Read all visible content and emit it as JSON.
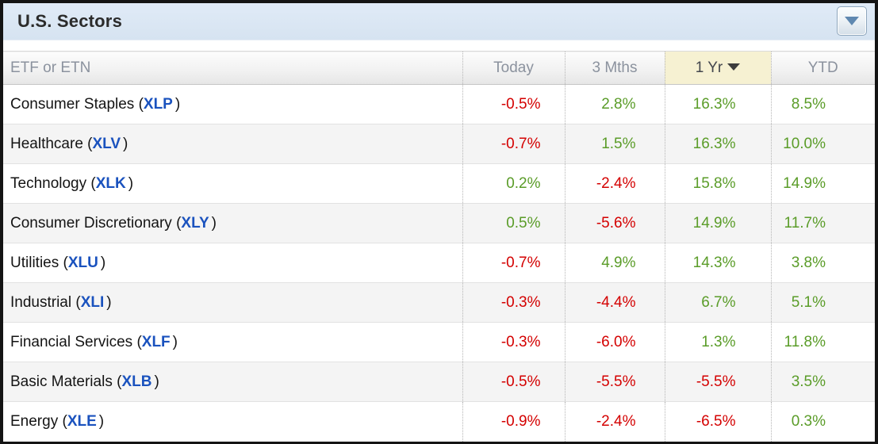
{
  "window": {
    "title": "U.S. Sectors",
    "dropdown_icon": "chevron-down"
  },
  "colors": {
    "titlebar_top": "#e0ebf7",
    "titlebar_bottom": "#d6e3f1",
    "title_text": "#2b2b2b",
    "header_text": "#8b929e",
    "sorted_bg": "#f6f1d2",
    "stripe_bg": "#f4f4f4",
    "pos_green": "#5a9c28",
    "neg_red": "#d40000",
    "ticker_blue": "#1a52be",
    "button_arrow": "#5f88b0"
  },
  "table": {
    "columns": [
      {
        "key": "name",
        "label": "ETF or ETN",
        "sorted": false
      },
      {
        "key": "today",
        "label": "Today",
        "sorted": false
      },
      {
        "key": "m3",
        "label": "3 Mths",
        "sorted": false
      },
      {
        "key": "y1",
        "label": "1 Yr",
        "sorted": true,
        "sort_direction": "desc"
      },
      {
        "key": "ytd",
        "label": "YTD",
        "sorted": false
      }
    ],
    "rows": [
      {
        "sector": "Consumer Staples",
        "ticker": "XLP",
        "today": "-0.5%",
        "m3": "2.8%",
        "y1": "16.3%",
        "ytd": "8.5%"
      },
      {
        "sector": "Healthcare",
        "ticker": "XLV",
        "today": "-0.7%",
        "m3": "1.5%",
        "y1": "16.3%",
        "ytd": "10.0%"
      },
      {
        "sector": "Technology",
        "ticker": "XLK",
        "today": "0.2%",
        "m3": "-2.4%",
        "y1": "15.8%",
        "ytd": "14.9%"
      },
      {
        "sector": "Consumer Discretionary",
        "ticker": "XLY",
        "today": "0.5%",
        "m3": "-5.6%",
        "y1": "14.9%",
        "ytd": "11.7%"
      },
      {
        "sector": "Utilities",
        "ticker": "XLU",
        "today": "-0.7%",
        "m3": "4.9%",
        "y1": "14.3%",
        "ytd": "3.8%"
      },
      {
        "sector": "Industrial",
        "ticker": "XLI",
        "today": "-0.3%",
        "m3": "-4.4%",
        "y1": "6.7%",
        "ytd": "5.1%"
      },
      {
        "sector": "Financial Services",
        "ticker": "XLF",
        "today": "-0.3%",
        "m3": "-6.0%",
        "y1": "1.3%",
        "ytd": "11.8%"
      },
      {
        "sector": "Basic Materials",
        "ticker": "XLB",
        "today": "-0.5%",
        "m3": "-5.5%",
        "y1": "-5.5%",
        "ytd": "3.5%"
      },
      {
        "sector": "Energy",
        "ticker": "XLE",
        "today": "-0.9%",
        "m3": "-2.4%",
        "y1": "-6.5%",
        "ytd": "0.3%"
      }
    ]
  }
}
